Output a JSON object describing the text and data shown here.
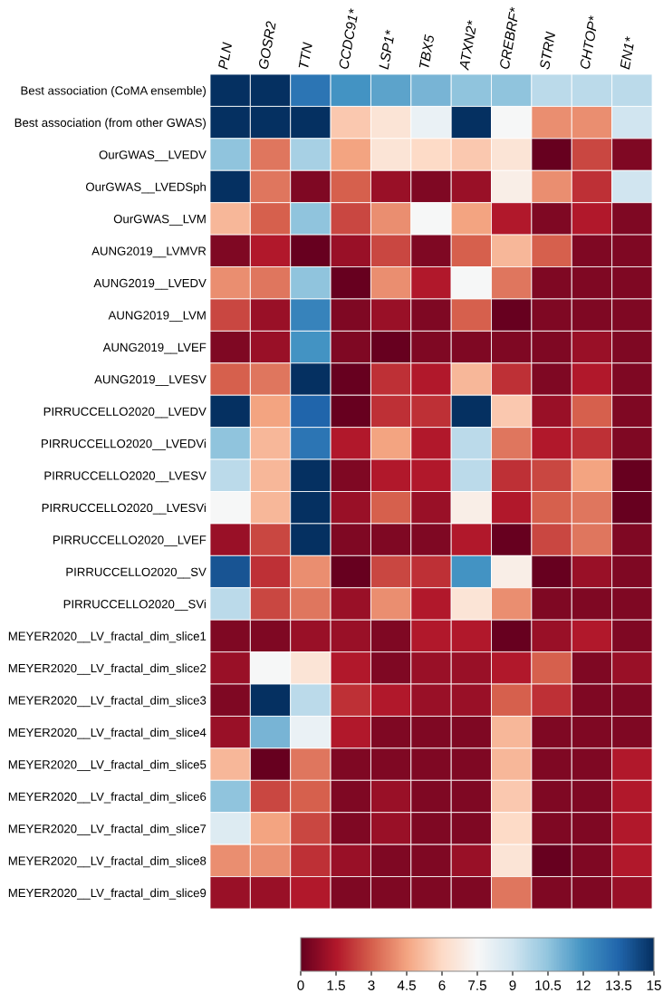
{
  "chart_data": {
    "type": "heatmap",
    "categories": [
      "PLN",
      "GOSR2",
      "TTN",
      "CCDC91*",
      "LSP1*",
      "TBX5",
      "ATXN2*",
      "CREBRF*",
      "STRN",
      "CHTOP*",
      "EN1*"
    ],
    "y_categories": [
      "Best association (CoMA ensemble)",
      "Best association (from other GWAS)",
      "OurGWAS__LVEDV",
      "OurGWAS__LVEDSph",
      "OurGWAS__LVM",
      "AUNG2019__LVMVR",
      "AUNG2019__LVEDV",
      "AUNG2019__LVM",
      "AUNG2019__LVEF",
      "AUNG2019__LVESV",
      "PIRRUCCELLO2020__LVEDV",
      "PIRRUCCELLO2020__LVEDVi",
      "PIRRUCCELLO2020__LVESV",
      "PIRRUCCELLO2020__LVESVi",
      "PIRRUCCELLO2020__LVEF",
      "PIRRUCCELLO2020__SV",
      "PIRRUCCELLO2020__SVi",
      "MEYER2020__LV_fractal_dim_slice1",
      "MEYER2020__LV_fractal_dim_slice2",
      "MEYER2020__LV_fractal_dim_slice3",
      "MEYER2020__LV_fractal_dim_slice4",
      "MEYER2020__LV_fractal_dim_slice5",
      "MEYER2020__LV_fractal_dim_slice6",
      "MEYER2020__LV_fractal_dim_slice7",
      "MEYER2020__LV_fractal_dim_slice8",
      "MEYER2020__LV_fractal_dim_slice9"
    ],
    "cells": [
      [
        15,
        15,
        13,
        12,
        11.5,
        11,
        10.5,
        10.5,
        9.5,
        9.5,
        9.5
      ],
      [
        15,
        15,
        15,
        5.5,
        6.5,
        8,
        15,
        7.5,
        4,
        4,
        9
      ],
      [
        10.5,
        3.5,
        10,
        4.5,
        6.5,
        6,
        5.5,
        6.5,
        0,
        2.5,
        0.5
      ],
      [
        15,
        3.5,
        0.5,
        3,
        1,
        0.5,
        1,
        7,
        4,
        2,
        9
      ],
      [
        5,
        3,
        10.5,
        2.5,
        4,
        7.5,
        4.5,
        1.5,
        0.5,
        1.5,
        0.5
      ],
      [
        0.5,
        1.5,
        0,
        1,
        2.5,
        0.5,
        3,
        5,
        3,
        0.5,
        0.5
      ],
      [
        4,
        3.5,
        10.5,
        0,
        4,
        1.5,
        7.5,
        3.5,
        0.5,
        0.5,
        0.5
      ],
      [
        2.5,
        1,
        12.5,
        0.5,
        1,
        0.5,
        3,
        0,
        0.5,
        0.5,
        0.5
      ],
      [
        0.5,
        1,
        12,
        0.5,
        0,
        0.5,
        0.5,
        0.5,
        0.5,
        1,
        0.5
      ],
      [
        3,
        3.5,
        15,
        0,
        2,
        1.5,
        5,
        2,
        0.5,
        1.5,
        0.5
      ],
      [
        15,
        4.5,
        13.5,
        0,
        2,
        2,
        15,
        5.5,
        1,
        3,
        0.5
      ],
      [
        10.5,
        5,
        13,
        1.5,
        4.5,
        1.5,
        9.5,
        3.5,
        1.5,
        2,
        0.5
      ],
      [
        9.5,
        5,
        15,
        0.5,
        1.5,
        1.5,
        9.5,
        2,
        2.5,
        4.5,
        0
      ],
      [
        7.5,
        5,
        15,
        1,
        3,
        1,
        7,
        1.5,
        3,
        3.5,
        0
      ],
      [
        1,
        2.5,
        15,
        0.5,
        0.5,
        0.5,
        1.5,
        0,
        2.5,
        3.5,
        0.5
      ],
      [
        14,
        2,
        4,
        0,
        2.5,
        2,
        12,
        7,
        0,
        1,
        0.5
      ],
      [
        9.5,
        2.5,
        3.5,
        1,
        4,
        1.5,
        6.5,
        4,
        0.5,
        0.5,
        0.5
      ],
      [
        0.5,
        0.5,
        1,
        1,
        0.5,
        1.5,
        1.5,
        0,
        1,
        1.5,
        0.5
      ],
      [
        1,
        7.5,
        6.5,
        1.5,
        0.5,
        1,
        1,
        1.5,
        3,
        0.5,
        1
      ],
      [
        0.5,
        15,
        9.5,
        2,
        1.5,
        1,
        1,
        3,
        2,
        0.5,
        0.5
      ],
      [
        1,
        11,
        8,
        1.5,
        0.5,
        0.5,
        0.5,
        5,
        0.5,
        0.5,
        0.5
      ],
      [
        5,
        0,
        3.5,
        0.5,
        0.5,
        0.5,
        0.5,
        5,
        0.5,
        0.5,
        1.5
      ],
      [
        10.5,
        2.5,
        3,
        0.5,
        1,
        0.5,
        0.5,
        5.5,
        0.5,
        0.5,
        1.5
      ],
      [
        8.5,
        4.5,
        2.5,
        0.5,
        1,
        0.5,
        0.5,
        6,
        0.5,
        0.5,
        1.5
      ],
      [
        4,
        4,
        2,
        1,
        0.5,
        0.5,
        1,
        6.5,
        0,
        0.5,
        1.5
      ],
      [
        1,
        1,
        1.5,
        0.5,
        0.5,
        0.5,
        0.5,
        3.5,
        0.5,
        0.5,
        1
      ]
    ],
    "clim": [
      0,
      15
    ],
    "cticks": [
      0,
      1.5,
      3,
      4.5,
      6,
      7.5,
      9,
      10.5,
      12,
      13.5,
      15
    ]
  }
}
